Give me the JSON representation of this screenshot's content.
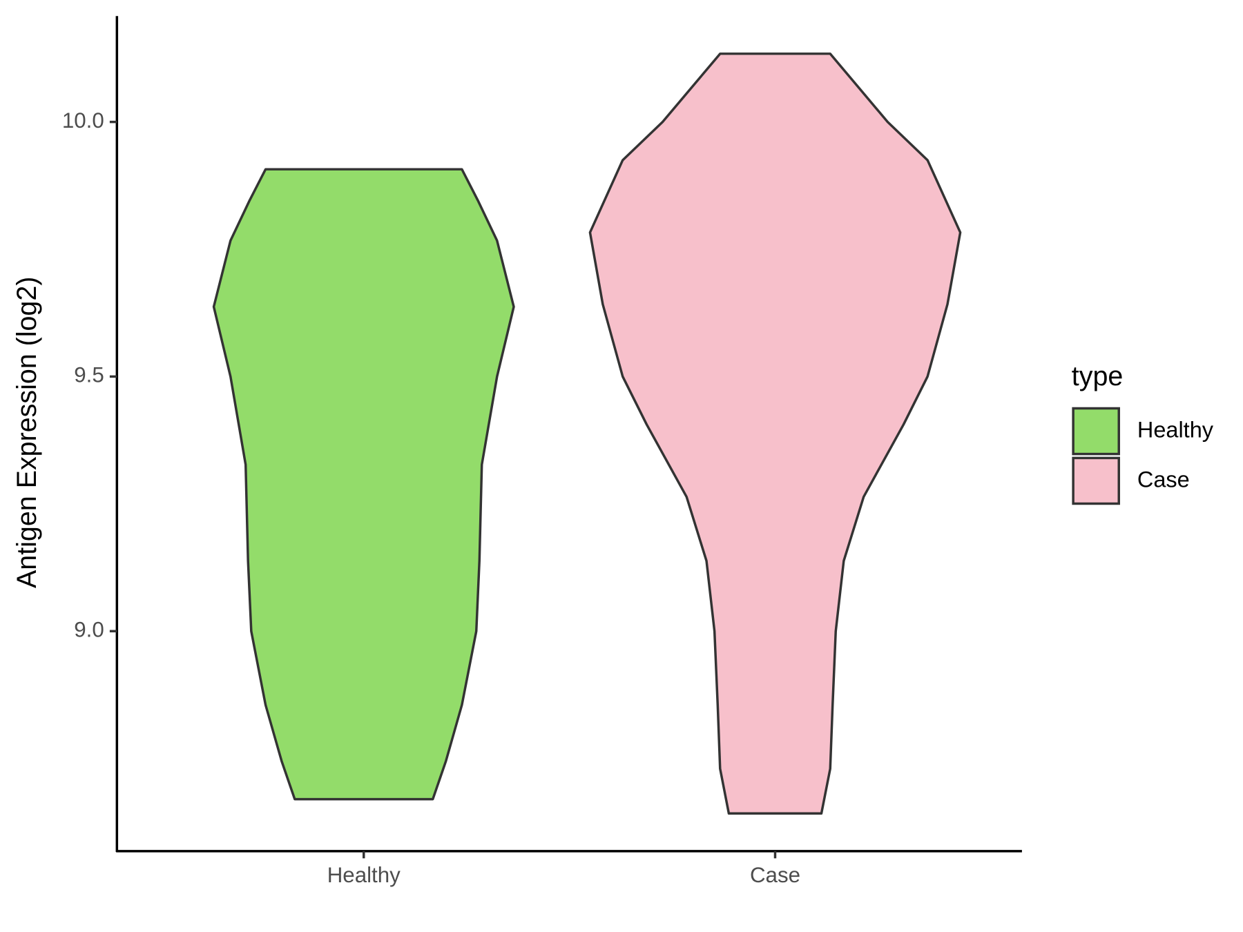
{
  "chart_data": {
    "type": "violin",
    "y_label": "Antigen Expression (log2)",
    "legend_title": "type",
    "legend_position": "right",
    "categories": [
      "Healthy",
      "Case"
    ],
    "ylim": [
      8.568,
      10.208
    ],
    "yticks": [
      {
        "value": 9,
        "label": "9.0"
      },
      {
        "value": 9.5,
        "label": "9.5"
      },
      {
        "value": 10,
        "label": "10.0"
      }
    ],
    "series": [
      {
        "name": "Healthy",
        "color": "#93dc6a",
        "y": [
          8.67,
          8.745,
          8.855,
          9.0,
          9.138,
          9.327,
          9.5,
          9.637,
          9.767,
          9.846,
          9.907
        ],
        "density": [
          86.5,
          103,
          123,
          141,
          145,
          148,
          167,
          188,
          167,
          143,
          123
        ]
      },
      {
        "name": "Case",
        "color": "#f7c0cb",
        "y": [
          8.642,
          8.73,
          8.855,
          9.0,
          9.138,
          9.264,
          9.406,
          9.5,
          9.642,
          9.783,
          9.925,
          10.0,
          10.134
        ],
        "density": [
          58,
          69,
          72,
          76,
          86,
          111,
          161,
          191,
          216,
          232,
          191,
          141,
          69
        ]
      }
    ]
  }
}
